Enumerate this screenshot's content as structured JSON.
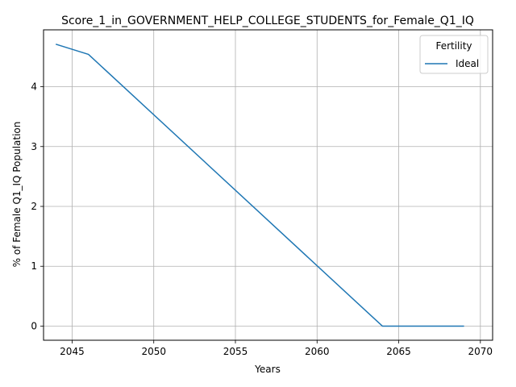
{
  "chart_data": {
    "type": "line",
    "title": "Score_1_in_GOVERNMENT_HELP_COLLEGE_STUDENTS_for_Female_Q1_IQ",
    "xlabel": "Years",
    "ylabel": "% of Female Q1_IQ Population",
    "xlim": [
      2043.25,
      2070.75
    ],
    "ylim": [
      -0.236,
      4.95
    ],
    "xticks": [
      2045,
      2050,
      2055,
      2060,
      2065,
      2070
    ],
    "yticks": [
      0,
      1,
      2,
      3,
      4
    ],
    "grid": true,
    "legend": {
      "title": "Fertility",
      "placement": "top-right"
    },
    "series": [
      {
        "name": "Ideal",
        "color": "#1f77b4",
        "x": [
          2044,
          2046,
          2064,
          2065,
          2066,
          2067,
          2068,
          2069
        ],
        "y": [
          4.71,
          4.54,
          0.0,
          0.0,
          0.0,
          0.0,
          0.0,
          0.0
        ]
      }
    ]
  }
}
